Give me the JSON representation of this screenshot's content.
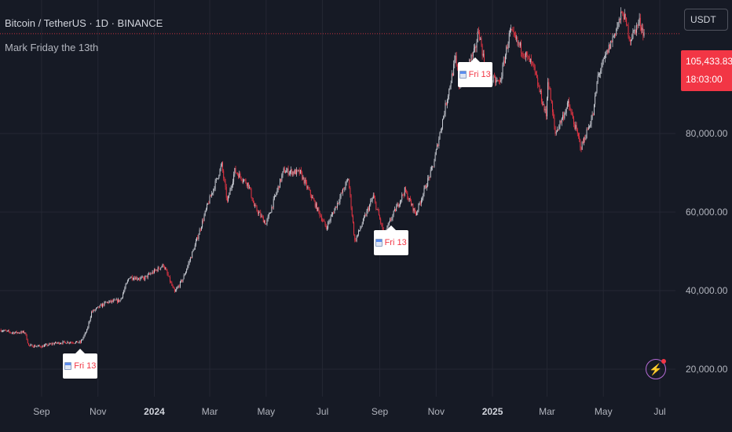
{
  "header": {
    "title": "Bitcoin / TetherUS · 1D · BINANCE",
    "indicator": "Mark Friday the 13th",
    "currency": "USDT"
  },
  "price_badge": {
    "price": "105,433.83",
    "countdown": "18:03:00",
    "color": "#f23645"
  },
  "colors": {
    "background": "#161a25",
    "candle_up": "#d1d4dc",
    "candle_down": "#f23645",
    "grid": "#242733",
    "price_line": "#f23645",
    "marker_text": "#f23645"
  },
  "chart_data": {
    "type": "candlestick",
    "title": "Bitcoin / TetherUS · 1D · BINANCE",
    "x_ticks": [
      {
        "label": "Sep",
        "date": "2023-09-01"
      },
      {
        "label": "Nov",
        "date": "2023-11-01"
      },
      {
        "label": "2024",
        "date": "2024-01-01",
        "bold": true
      },
      {
        "label": "Mar",
        "date": "2024-03-01"
      },
      {
        "label": "May",
        "date": "2024-05-01"
      },
      {
        "label": "Jul",
        "date": "2024-07-01"
      },
      {
        "label": "Sep",
        "date": "2024-09-01"
      },
      {
        "label": "Nov",
        "date": "2024-11-01"
      },
      {
        "label": "2025",
        "date": "2025-01-01",
        "bold": true
      },
      {
        "label": "Mar",
        "date": "2025-03-01"
      },
      {
        "label": "May",
        "date": "2025-05-01"
      },
      {
        "label": "Jul",
        "date": "2025-07-01"
      }
    ],
    "y_ticks": [
      {
        "label": "20,000.00",
        "value": 20000
      },
      {
        "label": "40,000.00",
        "value": 40000
      },
      {
        "label": "60,000.00",
        "value": 60000
      },
      {
        "label": "80,000.00",
        "value": 80000
      }
    ],
    "ylim": [
      13000,
      114000
    ],
    "xlim": [
      "2023-07-18",
      "2025-07-18"
    ],
    "grid": true,
    "last_price": 105433.83,
    "price_path": [
      [
        "2023-07-18",
        30000
      ],
      [
        "2023-07-31",
        29300
      ],
      [
        "2023-08-14",
        29400
      ],
      [
        "2023-08-18",
        26000
      ],
      [
        "2023-09-01",
        25800
      ],
      [
        "2023-09-15",
        26600
      ],
      [
        "2023-09-30",
        26900
      ],
      [
        "2023-10-13",
        26800
      ],
      [
        "2023-10-20",
        29800
      ],
      [
        "2023-10-25",
        34500
      ],
      [
        "2023-11-10",
        37000
      ],
      [
        "2023-11-25",
        37500
      ],
      [
        "2023-12-05",
        43500
      ],
      [
        "2023-12-20",
        43000
      ],
      [
        "2024-01-11",
        46500
      ],
      [
        "2024-01-23",
        39500
      ],
      [
        "2024-02-01",
        43000
      ],
      [
        "2024-02-14",
        51500
      ],
      [
        "2024-02-28",
        62000
      ],
      [
        "2024-03-14",
        72000
      ],
      [
        "2024-03-20",
        62500
      ],
      [
        "2024-03-28",
        70500
      ],
      [
        "2024-04-12",
        67000
      ],
      [
        "2024-04-18",
        61500
      ],
      [
        "2024-05-01",
        57000
      ],
      [
        "2024-05-20",
        70500
      ],
      [
        "2024-06-07",
        70000
      ],
      [
        "2024-06-25",
        61000
      ],
      [
        "2024-07-05",
        56000
      ],
      [
        "2024-07-29",
        68500
      ],
      [
        "2024-08-05",
        52500
      ],
      [
        "2024-08-25",
        64000
      ],
      [
        "2024-09-06",
        54000
      ],
      [
        "2024-09-13",
        58200
      ],
      [
        "2024-09-28",
        65500
      ],
      [
        "2024-10-10",
        59500
      ],
      [
        "2024-10-29",
        72000
      ],
      [
        "2024-11-12",
        88000
      ],
      [
        "2024-11-22",
        99000
      ],
      [
        "2024-11-26",
        92000
      ],
      [
        "2024-12-04",
        97000
      ],
      [
        "2024-12-13",
        101000
      ],
      [
        "2024-12-17",
        106500
      ],
      [
        "2024-12-26",
        94000
      ],
      [
        "2025-01-09",
        93000
      ],
      [
        "2025-01-20",
        106000
      ],
      [
        "2025-01-31",
        102000
      ],
      [
        "2025-02-14",
        97000
      ],
      [
        "2025-02-28",
        84500
      ],
      [
        "2025-03-02",
        94000
      ],
      [
        "2025-03-10",
        80000
      ],
      [
        "2025-03-24",
        87500
      ],
      [
        "2025-04-07",
        76500
      ],
      [
        "2025-04-20",
        85000
      ],
      [
        "2025-04-25",
        94500
      ],
      [
        "2025-05-09",
        103000
      ],
      [
        "2025-05-22",
        111000
      ],
      [
        "2025-05-30",
        104000
      ],
      [
        "2025-06-09",
        108500
      ],
      [
        "2025-06-14",
        105433.83
      ]
    ],
    "annotations": [
      {
        "label": "Fri 13",
        "date": "2023-10-13",
        "value": 26800,
        "placement": "below"
      },
      {
        "label": "Fri 13",
        "date": "2024-09-13",
        "value": 58200,
        "placement": "below"
      },
      {
        "label": "Fri 13",
        "date": "2024-12-13",
        "value": 101000,
        "placement": "below"
      }
    ]
  }
}
